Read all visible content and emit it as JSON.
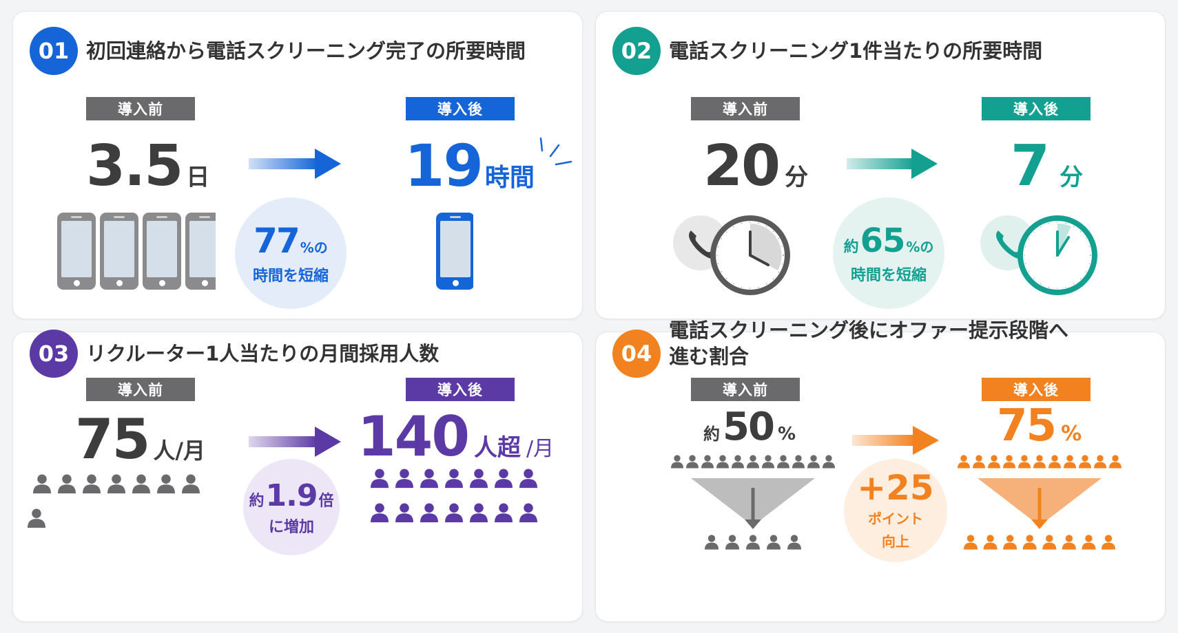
{
  "colors": {
    "blue": "#1565d8",
    "teal": "#13a091",
    "purple": "#5c3aa5",
    "orange": "#f2821f",
    "gray": "#6a6a6c"
  },
  "cards": [
    {
      "number": "01",
      "title": "初回連絡から電話スクリーニング完了の所要時間",
      "before_label": "導入前",
      "before_value": "3.5",
      "before_unit": "日",
      "after_label": "導入後",
      "after_value": "19",
      "after_unit": "時間",
      "circle_value": "77",
      "circle_suffix": "%の",
      "circle_text": "時間を短縮",
      "before_icon": "smartphone-icon",
      "after_icon": "smartphone-icon"
    },
    {
      "number": "02",
      "title": "電話スクリーニング1件当たりの所要時間",
      "before_label": "導入前",
      "before_value": "20",
      "before_unit": "分",
      "after_label": "導入後",
      "after_value": "7",
      "after_unit": "分",
      "circle_prefix": "約",
      "circle_value": "65",
      "circle_suffix": "%の",
      "circle_text": "時間を短縮",
      "before_icon": "phone-clock-icon",
      "after_icon": "phone-clock-icon"
    },
    {
      "number": "03",
      "title": "リクルーター1人当たりの月間採用人数",
      "before_label": "導入前",
      "before_value": "75",
      "before_unit": "人/月",
      "after_label": "導入後",
      "after_value": "140",
      "after_unit": "人超",
      "after_unit2": "/月",
      "circle_prefix": "約",
      "circle_value": "1.9",
      "circle_suffix": "倍",
      "circle_text": "に増加",
      "before_icon": "person-icon",
      "after_icon": "person-icon"
    },
    {
      "number": "04",
      "title_line1": "電話スクリーニング後にオファー提示段階へ",
      "title_line2": "進む割合",
      "before_label": "導入前",
      "before_prefix": "約",
      "before_value": "50",
      "before_unit": "%",
      "after_label": "導入後",
      "after_value": "75",
      "after_unit": "%",
      "circle_value": "+25",
      "circle_text1": "ポイント",
      "circle_text2": "向上",
      "before_icon": "funnel-icon",
      "after_icon": "funnel-icon"
    }
  ]
}
